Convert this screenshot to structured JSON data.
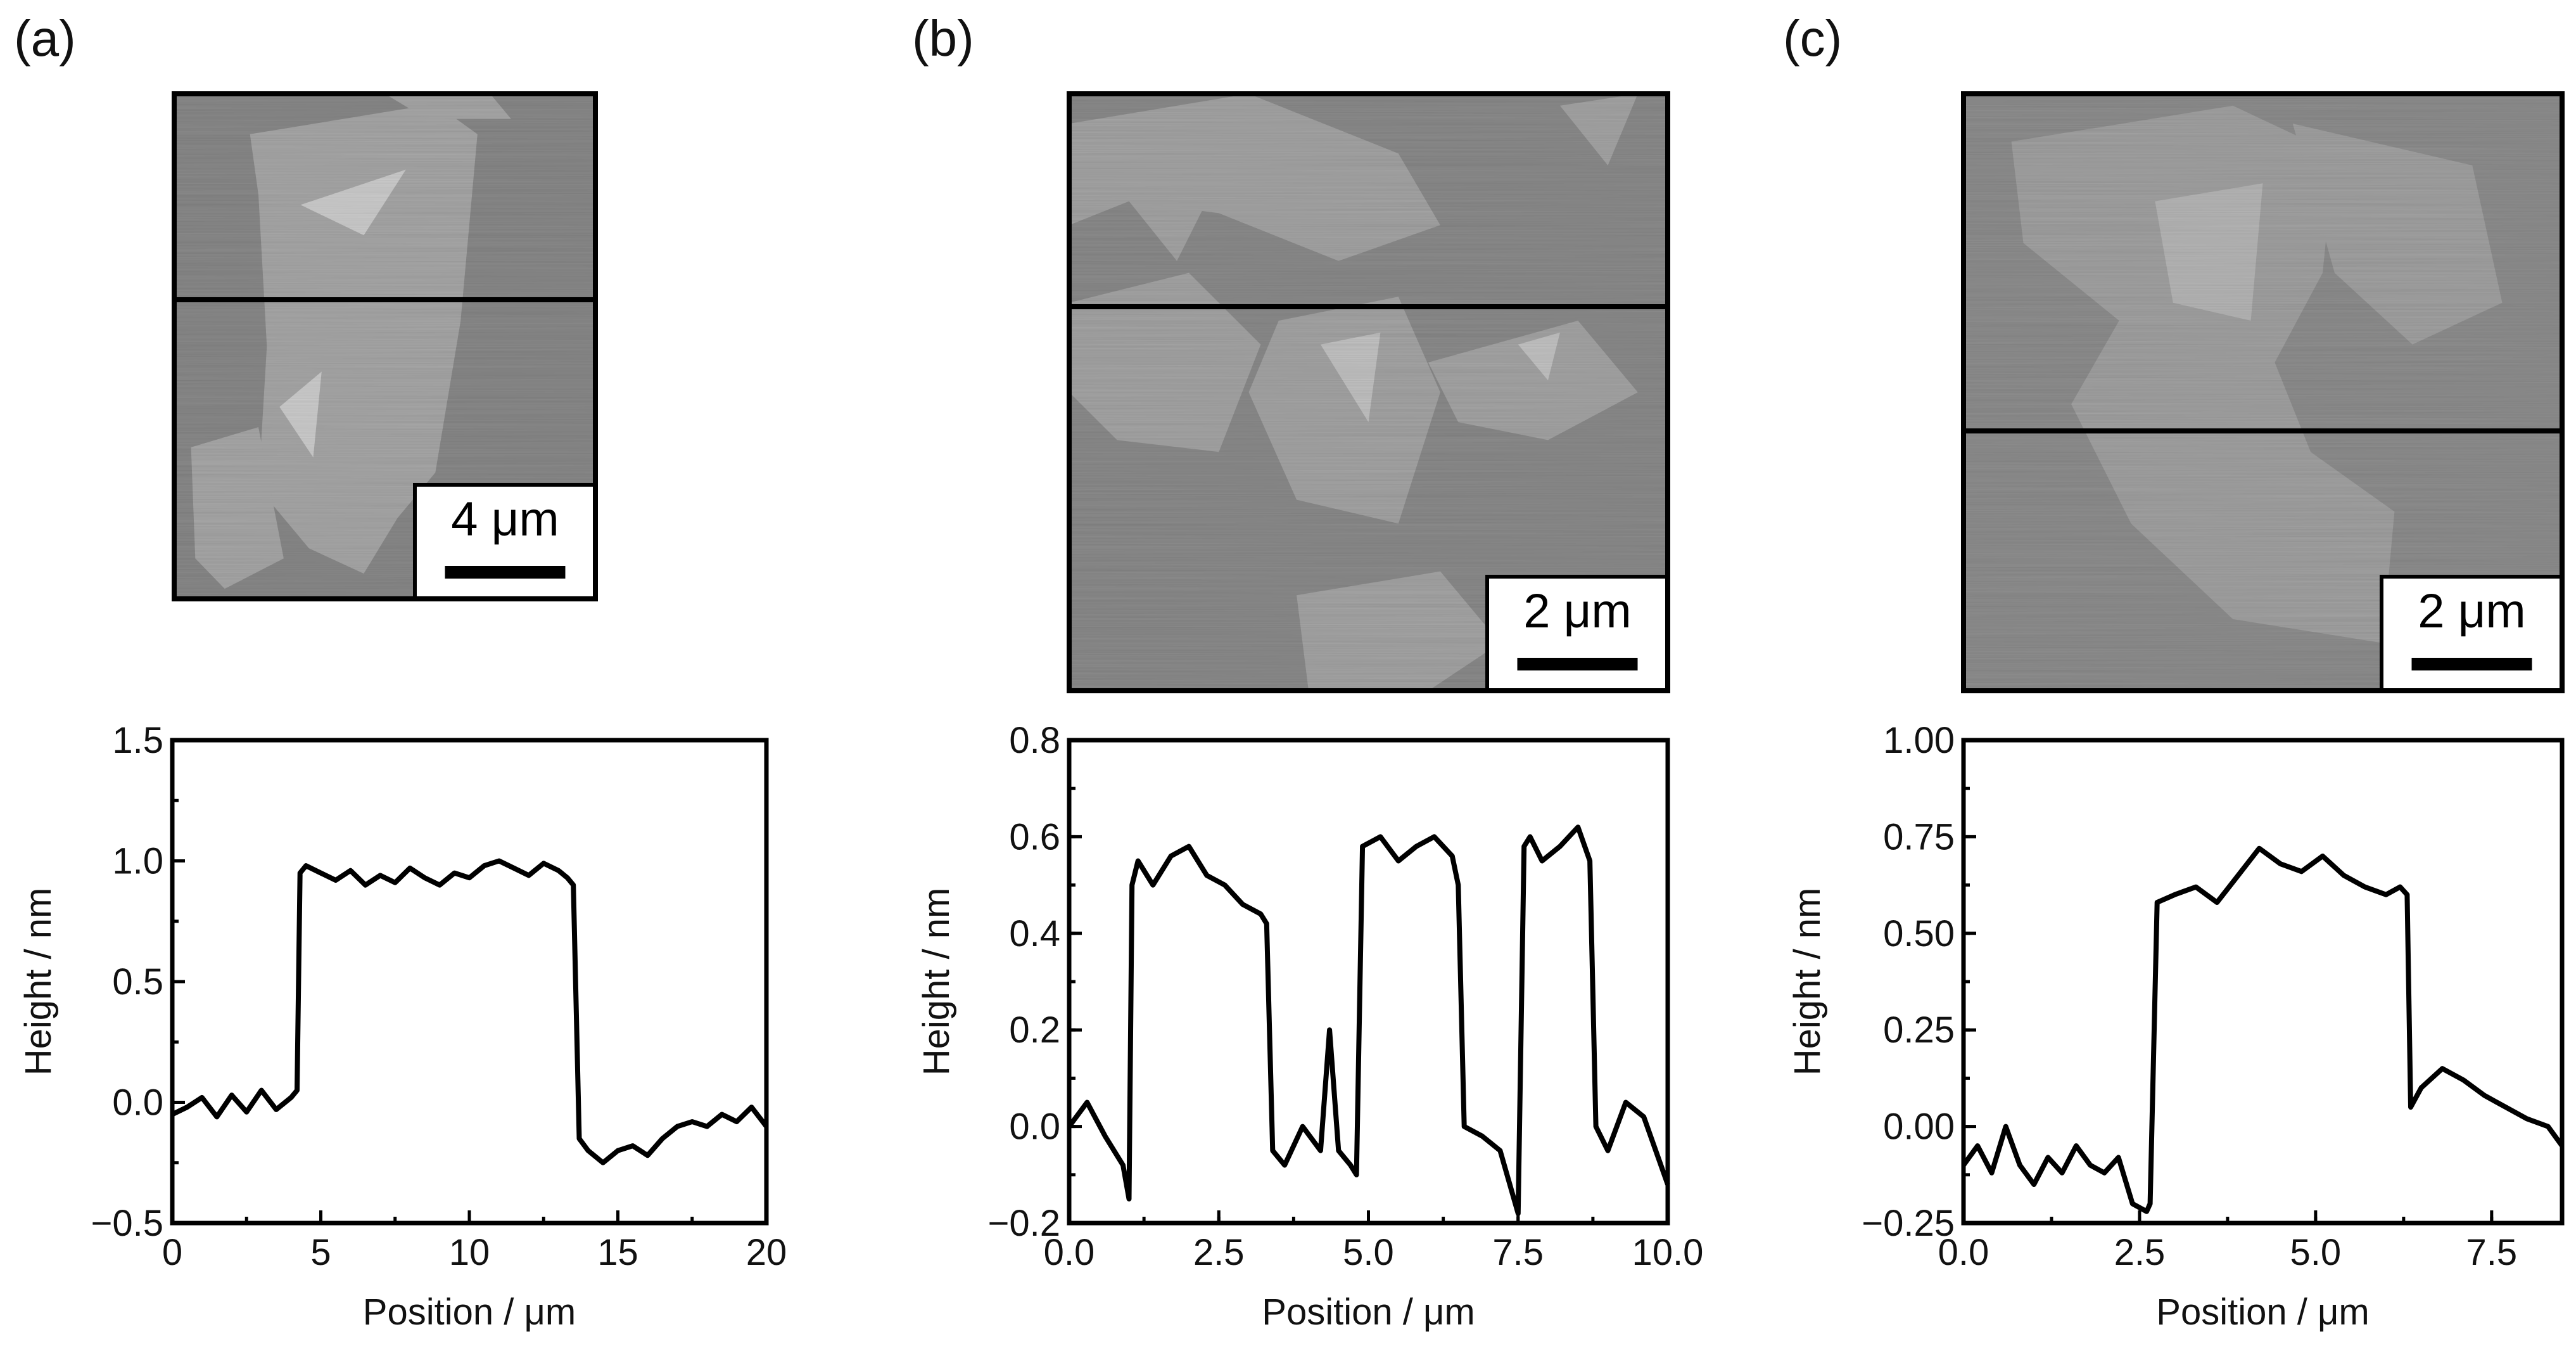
{
  "panels": [
    {
      "label": "(a)",
      "scale_bar": "4 μm",
      "image": {
        "bg": "#8a8a8a",
        "flake": "#a9a9a9",
        "bright": "#cfcfcf"
      },
      "chart_data": {
        "type": "line",
        "xlabel": "Position / μm",
        "ylabel": "Height / nm",
        "xlim": [
          0,
          20
        ],
        "ylim": [
          -0.5,
          1.5
        ],
        "xticks": [
          "0",
          "5",
          "10",
          "15",
          "20"
        ],
        "xtick_values": [
          0,
          5,
          10,
          15,
          20
        ],
        "yticks": [
          "−0.5",
          "0.0",
          "0.5",
          "1.0",
          "1.5"
        ],
        "ytick_values": [
          -0.5,
          0.0,
          0.5,
          1.0,
          1.5
        ],
        "series": [
          {
            "x": [
              0,
              0.5,
              1,
              1.5,
              2,
              2.5,
              3,
              3.5,
              4,
              4.2,
              4.3,
              4.5,
              5,
              5.5,
              6,
              6.5,
              7,
              7.5,
              8,
              8.5,
              9,
              9.5,
              10,
              10.5,
              11,
              11.5,
              12,
              12.5,
              13,
              13.3,
              13.5,
              13.7,
              14,
              14.5,
              15,
              15.5,
              16,
              16.5,
              17,
              17.5,
              18,
              18.5,
              19,
              19.5,
              20
            ],
            "y": [
              -0.05,
              -0.02,
              0.02,
              -0.06,
              0.03,
              -0.04,
              0.05,
              -0.03,
              0.02,
              0.05,
              0.95,
              0.98,
              0.95,
              0.92,
              0.96,
              0.9,
              0.94,
              0.91,
              0.97,
              0.93,
              0.9,
              0.95,
              0.93,
              0.98,
              1.0,
              0.97,
              0.94,
              0.99,
              0.96,
              0.93,
              0.9,
              -0.15,
              -0.2,
              -0.25,
              -0.2,
              -0.18,
              -0.22,
              -0.15,
              -0.1,
              -0.08,
              -0.1,
              -0.05,
              -0.08,
              -0.02,
              -0.1
            ]
          }
        ]
      }
    },
    {
      "label": "(b)",
      "scale_bar": "2 μm",
      "image": {
        "bg": "#8c8c8c",
        "flake": "#a6a6a6",
        "bright": "#c4c4c4"
      },
      "chart_data": {
        "type": "line",
        "xlabel": "Position / μm",
        "ylabel": "Height / nm",
        "xlim": [
          0,
          10
        ],
        "ylim": [
          -0.2,
          0.8
        ],
        "xticks": [
          "0.0",
          "2.5",
          "5.0",
          "7.5",
          "10.0"
        ],
        "xtick_values": [
          0,
          2.5,
          5,
          7.5,
          10
        ],
        "yticks": [
          "−0.2",
          "0.0",
          "0.2",
          "0.4",
          "0.6",
          "0.8"
        ],
        "ytick_values": [
          -0.2,
          0.0,
          0.2,
          0.4,
          0.6,
          0.8
        ],
        "series": [
          {
            "x": [
              0,
              0.3,
              0.6,
              0.9,
              1.0,
              1.05,
              1.15,
              1.4,
              1.7,
              2.0,
              2.3,
              2.6,
              2.9,
              3.2,
              3.3,
              3.4,
              3.6,
              3.9,
              4.2,
              4.35,
              4.5,
              4.7,
              4.8,
              4.9,
              5.2,
              5.5,
              5.8,
              6.1,
              6.4,
              6.5,
              6.6,
              6.9,
              7.2,
              7.5,
              7.6,
              7.7,
              7.9,
              8.2,
              8.5,
              8.7,
              8.8,
              9.0,
              9.3,
              9.6,
              10.0
            ],
            "y": [
              0.0,
              0.05,
              -0.02,
              -0.08,
              -0.15,
              0.5,
              0.55,
              0.5,
              0.56,
              0.58,
              0.52,
              0.5,
              0.46,
              0.44,
              0.42,
              -0.05,
              -0.08,
              0.0,
              -0.05,
              0.2,
              -0.05,
              -0.08,
              -0.1,
              0.58,
              0.6,
              0.55,
              0.58,
              0.6,
              0.56,
              0.5,
              0.0,
              -0.02,
              -0.05,
              -0.18,
              0.58,
              0.6,
              0.55,
              0.58,
              0.62,
              0.55,
              0.0,
              -0.05,
              0.05,
              0.02,
              -0.12
            ]
          }
        ]
      }
    },
    {
      "label": "(c)",
      "scale_bar": "2 μm",
      "image": {
        "bg": "#8f8f8f",
        "flake": "#a3a3a3",
        "bright": "#b8b8b8"
      },
      "chart_data": {
        "type": "line",
        "xlabel": "Position / μm",
        "ylabel": "Height / nm",
        "xlim": [
          0,
          8.5
        ],
        "ylim": [
          -0.25,
          1.0
        ],
        "xticks": [
          "0.0",
          "2.5",
          "5.0",
          "7.5"
        ],
        "xtick_values": [
          0,
          2.5,
          5,
          7.5
        ],
        "yticks": [
          "−0.25",
          "0.00",
          "0.25",
          "0.50",
          "0.75",
          "1.00"
        ],
        "ytick_values": [
          -0.25,
          0.0,
          0.25,
          0.5,
          0.75,
          1.0
        ],
        "series": [
          {
            "x": [
              0,
              0.2,
              0.4,
              0.6,
              0.8,
              1.0,
              1.2,
              1.4,
              1.6,
              1.8,
              2.0,
              2.2,
              2.4,
              2.6,
              2.65,
              2.75,
              3.0,
              3.3,
              3.6,
              3.9,
              4.2,
              4.5,
              4.8,
              5.1,
              5.4,
              5.7,
              6.0,
              6.2,
              6.3,
              6.35,
              6.5,
              6.8,
              7.1,
              7.4,
              7.7,
              8.0,
              8.3,
              8.5
            ],
            "y": [
              -0.1,
              -0.05,
              -0.12,
              0.0,
              -0.1,
              -0.15,
              -0.08,
              -0.12,
              -0.05,
              -0.1,
              -0.12,
              -0.08,
              -0.2,
              -0.22,
              -0.2,
              0.58,
              0.6,
              0.62,
              0.58,
              0.65,
              0.72,
              0.68,
              0.66,
              0.7,
              0.65,
              0.62,
              0.6,
              0.62,
              0.6,
              0.05,
              0.1,
              0.15,
              0.12,
              0.08,
              0.05,
              0.02,
              0.0,
              -0.05
            ]
          }
        ]
      }
    }
  ]
}
